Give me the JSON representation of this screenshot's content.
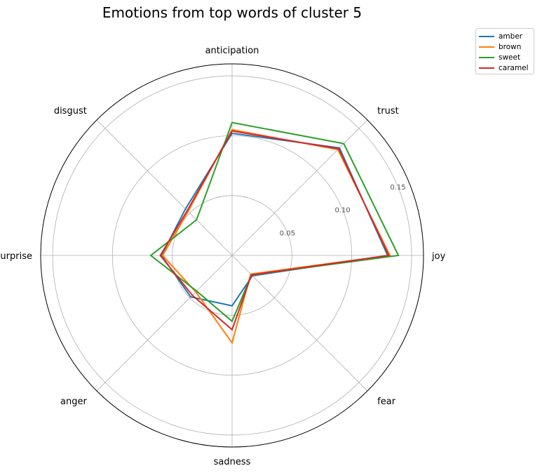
{
  "chart_data": {
    "type": "radar",
    "title": "Emotions from top words of cluster 5",
    "categories": [
      "joy",
      "trust",
      "anticipation",
      "disgust",
      "surprise",
      "anger",
      "sadness",
      "fear"
    ],
    "radial_ticks": [
      0.05,
      0.1,
      0.15
    ],
    "rmax": 0.16,
    "grid": true,
    "legend_position": "top-right",
    "series": [
      {
        "name": "amber",
        "color": "#1f77b4",
        "values": [
          0.13,
          0.127,
          0.102,
          0.055,
          0.059,
          0.049,
          0.042,
          0.024
        ]
      },
      {
        "name": "brown",
        "color": "#ff7f0e",
        "values": [
          0.132,
          0.125,
          0.105,
          0.052,
          0.058,
          0.043,
          0.073,
          0.022
        ]
      },
      {
        "name": "sweet",
        "color": "#2ca02c",
        "values": [
          0.139,
          0.132,
          0.111,
          0.042,
          0.068,
          0.042,
          0.055,
          0.023
        ]
      },
      {
        "name": "caramel",
        "color": "#d62728",
        "values": [
          0.131,
          0.126,
          0.104,
          0.053,
          0.06,
          0.047,
          0.062,
          0.023
        ]
      }
    ]
  }
}
